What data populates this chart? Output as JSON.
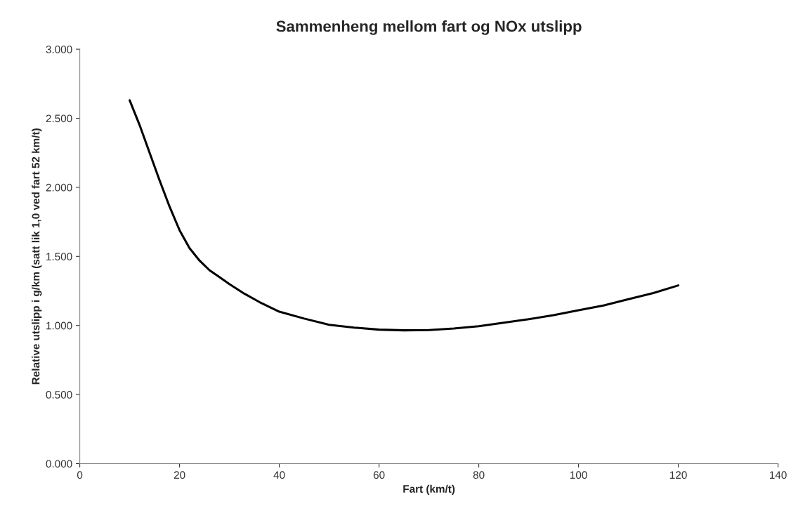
{
  "chart_data": {
    "type": "line",
    "title": "Sammenheng mellom fart og NOx utslipp",
    "xlabel": "Fart (km/t)",
    "ylabel": "Relative utslipp i g/km (satt lik 1,0 ved fart 52 km/t)",
    "x": [
      10,
      12,
      14,
      16,
      18,
      20,
      22,
      24,
      26,
      28,
      30,
      33,
      36,
      40,
      45,
      50,
      55,
      60,
      65,
      70,
      75,
      80,
      85,
      90,
      95,
      100,
      105,
      110,
      115,
      120
    ],
    "series": [
      {
        "color": "#000000",
        "values": [
          2.63,
          2.45,
          2.25,
          2.05,
          1.86,
          1.69,
          1.56,
          1.47,
          1.4,
          1.35,
          1.3,
          1.23,
          1.17,
          1.1,
          1.05,
          1.005,
          0.985,
          0.97,
          0.965,
          0.967,
          0.978,
          0.995,
          1.02,
          1.045,
          1.075,
          1.11,
          1.145,
          1.19,
          1.235,
          1.29
        ]
      }
    ],
    "xlim": [
      0,
      140
    ],
    "xticks": [
      0,
      20,
      40,
      60,
      80,
      100,
      120,
      140
    ],
    "ylim": [
      0,
      3
    ],
    "yticks": [
      {
        "value": 0,
        "label": "0.000"
      },
      {
        "value": 0.5,
        "label": "0.500"
      },
      {
        "value": 1,
        "label": "1.000"
      },
      {
        "value": 1.5,
        "label": "1.500"
      },
      {
        "value": 2,
        "label": "2.000"
      },
      {
        "value": 2.5,
        "label": "2.500"
      },
      {
        "value": 3,
        "label": "3.000"
      }
    ],
    "grid": false,
    "legend": false,
    "marker": "none",
    "line_style": "solid"
  }
}
